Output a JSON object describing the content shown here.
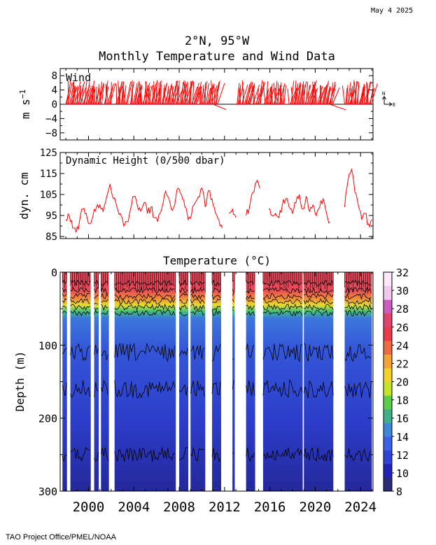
{
  "header": {
    "date": "May  4 2025",
    "title_line1": "2°N, 95°W",
    "title_line2": "Monthly Temperature and Wind Data"
  },
  "footer": {
    "credit": "TAO Project Office/PMEL/NOAA"
  },
  "colors": {
    "wind": "#ff0000",
    "dynamic_height": "#ff0000",
    "isotherm": "#000000",
    "colorbar": [
      "#2a2a78",
      "#2222b8",
      "#2f44d6",
      "#3b62e6",
      "#3f86d8",
      "#3fb08a",
      "#5ccc4a",
      "#c8e42a",
      "#f4d22c",
      "#f2a236",
      "#ee6a42",
      "#ea3a4c",
      "#e0446c",
      "#cc5cc0",
      "#f2c8ee",
      "#fce8fa"
    ]
  },
  "chart_data": [
    {
      "type": "line",
      "panel": "wind",
      "label": "Wind",
      "ylabel": "m s-1",
      "ylabel_main": "m s",
      "ylabel_sup": "−1",
      "ylim": [
        -10,
        10
      ],
      "yticks": [
        "8",
        "4",
        "0",
        "−4",
        "−8"
      ],
      "ytick_values": [
        8,
        4,
        0,
        -4,
        -8
      ],
      "compass": {
        "north": "N",
        "east": "E"
      },
      "xlim": [
        1997.5,
        2025.1
      ],
      "segments": [
        [
          1998.0,
          2001.2
        ],
        [
          2001.4,
          2002.0
        ],
        [
          2002.4,
          2003.4
        ],
        [
          2003.7,
          2009.6
        ],
        [
          2009.8,
          2011.4
        ],
        [
          2013.1,
          2014.3
        ],
        [
          2014.5,
          2015.2
        ],
        [
          2015.5,
          2017.3
        ],
        [
          2017.7,
          2021.6
        ],
        [
          2022.6,
          2025.0
        ]
      ],
      "u_mean": 0.8,
      "v_mean": 5.5
    },
    {
      "type": "line",
      "panel": "dynamic_height",
      "label": "Dynamic Height (0/500 dbar)",
      "ylabel": "dyn. cm",
      "ylim": [
        84,
        125
      ],
      "yticks": [
        "125",
        "115",
        "105",
        "95",
        "85"
      ],
      "ytick_values": [
        125,
        115,
        105,
        95,
        85
      ],
      "xlim": [
        1997.5,
        2025.1
      ],
      "series": [
        {
          "x": [
            1998.0,
            1998.3,
            1998.6,
            1998.9,
            1999.2,
            1999.5,
            1999.8,
            2000.1,
            2000.4,
            2000.7,
            2001.0,
            2001.3,
            2001.6,
            2001.9,
            2002.2,
            2002.5,
            2002.8,
            2003.1,
            2003.4,
            2003.7,
            2004.0,
            2004.3,
            2004.6,
            2004.9,
            2005.2,
            2005.5,
            2005.8,
            2006.1,
            2006.4,
            2006.7,
            2007.0,
            2007.3,
            2007.6,
            2007.9,
            2008.2,
            2008.5,
            2008.8,
            2009.1,
            2009.4,
            2009.7,
            2010.0,
            2010.3,
            2010.6,
            2010.9,
            2011.2,
            2011.5,
            2011.8
          ],
          "y": [
            93,
            95,
            89,
            87,
            92,
            98,
            96,
            91,
            95,
            99,
            100,
            97,
            104,
            110,
            103,
            99,
            96,
            90,
            92,
            98,
            104,
            100,
            97,
            101,
            96,
            99,
            94,
            92,
            97,
            105,
            104,
            98,
            100,
            108,
            105,
            99,
            93,
            96,
            101,
            104,
            108,
            99,
            107,
            103,
            96,
            93,
            89
          ]
        },
        {
          "x": [
            2012.4,
            2012.7,
            2013.0
          ],
          "y": [
            96,
            98,
            94
          ]
        },
        {
          "x": [
            2013.9,
            2014.2,
            2014.5,
            2014.8,
            2015.1
          ],
          "y": [
            95,
            99,
            106,
            111,
            108
          ]
        },
        {
          "x": [
            2015.9,
            2016.2,
            2016.5,
            2016.8,
            2017.1,
            2017.4,
            2017.7,
            2018.0,
            2018.3,
            2018.6,
            2018.9,
            2019.2,
            2019.5,
            2019.8,
            2020.1,
            2020.4,
            2020.7,
            2021.0,
            2021.3
          ],
          "y": [
            98,
            95,
            96,
            94,
            100,
            103,
            99,
            96,
            101,
            105,
            98,
            104,
            97,
            100,
            95,
            99,
            103,
            96,
            92
          ]
        },
        {
          "x": [
            2022.6,
            2022.9,
            2023.2,
            2023.5,
            2023.8,
            2024.1,
            2024.4,
            2024.7,
            2025.0
          ],
          "y": [
            99,
            112,
            117,
            106,
            100,
            93,
            96,
            91,
            93
          ]
        }
      ]
    },
    {
      "type": "heatmap",
      "panel": "temperature",
      "title": "Temperature (°C)",
      "ylabel": "Depth (m)",
      "ylim": [
        0,
        300
      ],
      "yticks": [
        "0",
        "100",
        "200",
        "300"
      ],
      "ytick_values": [
        0,
        100,
        200,
        300
      ],
      "xlim": [
        1997.5,
        2025.1
      ],
      "xticks": [
        "2000",
        "2004",
        "2008",
        "2012",
        "2016",
        "2020",
        "2024"
      ],
      "xtick_values": [
        2000,
        2004,
        2008,
        2012,
        2016,
        2020,
        2024
      ],
      "colorbar_ticks": [
        "32",
        "30",
        "28",
        "26",
        "24",
        "22",
        "20",
        "18",
        "16",
        "14",
        "12",
        "10",
        "8"
      ],
      "colorbar_values": [
        32,
        30,
        28,
        26,
        24,
        22,
        20,
        18,
        16,
        14,
        12,
        10,
        8
      ],
      "clim": [
        8,
        32
      ],
      "surface_temp": 25,
      "thermocline_depth": 45,
      "data_segments": [
        [
          1997.7,
          1998.1
        ],
        [
          1998.4,
          2000.2
        ],
        [
          2000.5,
          2000.9
        ],
        [
          2001.1,
          2001.8
        ],
        [
          2002.3,
          2007.7
        ],
        [
          2008.0,
          2008.8
        ],
        [
          2009.0,
          2010.3
        ],
        [
          2010.9,
          2011.7
        ],
        [
          2012.7,
          2012.9
        ],
        [
          2013.9,
          2014.7
        ],
        [
          2015.4,
          2018.9
        ],
        [
          2019.0,
          2021.6
        ],
        [
          2022.6,
          2025.0
        ]
      ]
    }
  ]
}
